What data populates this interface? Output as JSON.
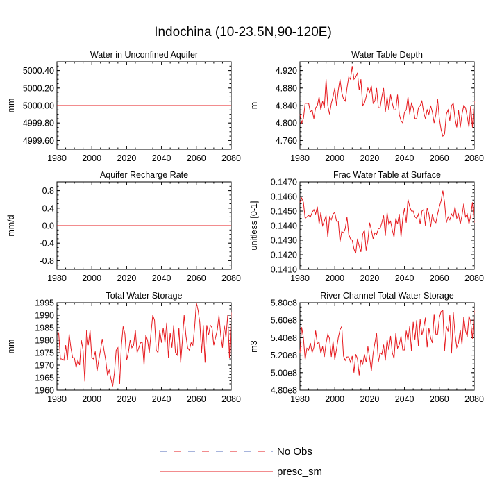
{
  "figure": {
    "title": "Indochina (10-23.5N,90-120E)"
  },
  "legend": {
    "items": [
      {
        "label": "No Obs",
        "color": "#4f6ab8",
        "style": "dashed"
      },
      {
        "label": "presc_sm",
        "color": "#e6191e",
        "style": "solid"
      }
    ]
  },
  "chart_data": [
    {
      "type": "line",
      "title": "Water in Unconfined Aquifer",
      "xlabel": "",
      "ylabel": "mm",
      "xlim": [
        1980,
        2080
      ],
      "ylim": [
        4999.5,
        5000.5
      ],
      "xticks": [
        1980,
        2000,
        2020,
        2040,
        2060,
        2080
      ],
      "xtick_labels": [
        "1980",
        "2000",
        "2020",
        "2040",
        "2060",
        "2080"
      ],
      "yticks": [
        4999.6,
        4999.8,
        5000.0,
        5000.2,
        5000.4
      ],
      "ytick_labels": [
        "4999.60",
        "4999.80",
        "5000.00",
        "5000.20",
        "5000.40"
      ],
      "x": [
        1980,
        2080
      ],
      "series": [
        {
          "name": "presc_sm",
          "values": [
            5000.0,
            5000.0
          ]
        }
      ]
    },
    {
      "type": "line",
      "title": "Water Table Depth",
      "xlabel": "",
      "ylabel": "m",
      "xlim": [
        1980,
        2080
      ],
      "ylim": [
        4.74,
        4.94
      ],
      "xticks": [
        1980,
        2000,
        2020,
        2040,
        2060,
        2080
      ],
      "xtick_labels": [
        "1980",
        "2000",
        "2020",
        "2040",
        "2060",
        "2080"
      ],
      "yticks": [
        4.76,
        4.8,
        4.84,
        4.88,
        4.92
      ],
      "ytick_labels": [
        "4.760",
        "4.800",
        "4.840",
        "4.880",
        "4.920"
      ],
      "x": [
        1980,
        1981,
        1982,
        1983,
        1984,
        1985,
        1986,
        1987,
        1988,
        1989,
        1990,
        1991,
        1992,
        1993,
        1994,
        1995,
        1996,
        1997,
        1998,
        1999,
        2000,
        2001,
        2002,
        2003,
        2004,
        2005,
        2006,
        2007,
        2008,
        2009,
        2010,
        2011,
        2012,
        2013,
        2014,
        2015,
        2016,
        2017,
        2018,
        2019,
        2020,
        2021,
        2022,
        2023,
        2024,
        2025,
        2026,
        2027,
        2028,
        2029,
        2030,
        2031,
        2032,
        2033,
        2034,
        2035,
        2036,
        2037,
        2038,
        2039,
        2040,
        2041,
        2042,
        2043,
        2044,
        2045,
        2046,
        2047,
        2048,
        2049,
        2050,
        2051,
        2052,
        2053,
        2054,
        2055,
        2056,
        2057,
        2058,
        2059,
        2060,
        2061,
        2062,
        2063,
        2064,
        2065,
        2066,
        2067,
        2068,
        2069,
        2070,
        2071,
        2072,
        2073,
        2074,
        2075,
        2076,
        2077,
        2078,
        2079,
        2080
      ],
      "series": [
        {
          "name": "presc_sm",
          "values": [
            4.82,
            4.8,
            4.81,
            4.845,
            4.845,
            4.845,
            4.825,
            4.83,
            4.81,
            4.835,
            4.84,
            4.86,
            4.83,
            4.85,
            4.835,
            4.9,
            4.84,
            4.82,
            4.845,
            4.86,
            4.88,
            4.84,
            4.875,
            4.9,
            4.87,
            4.855,
            4.85,
            4.88,
            4.905,
            4.9,
            4.93,
            4.9,
            4.905,
            4.915,
            4.875,
            4.9,
            4.84,
            4.845,
            4.86,
            4.88,
            4.87,
            4.885,
            4.845,
            4.85,
            4.88,
            4.835,
            4.835,
            4.86,
            4.88,
            4.825,
            4.86,
            4.83,
            4.865,
            4.845,
            4.83,
            4.83,
            4.865,
            4.82,
            4.805,
            4.8,
            4.825,
            4.83,
            4.86,
            4.82,
            4.845,
            4.835,
            4.81,
            4.81,
            4.835,
            4.84,
            4.85,
            4.825,
            4.81,
            4.83,
            4.82,
            4.84,
            4.825,
            4.8,
            4.82,
            4.855,
            4.81,
            4.785,
            4.77,
            4.775,
            4.82,
            4.83,
            4.805,
            4.84,
            4.845,
            4.81,
            4.79,
            4.83,
            4.79,
            4.82,
            4.84,
            4.835,
            4.815,
            4.79,
            4.84,
            4.79,
            4.85
          ]
        }
      ]
    },
    {
      "type": "line",
      "title": "Aquifer Recharge Rate",
      "xlabel": "",
      "ylabel": "mm/d",
      "xlim": [
        1980,
        2080
      ],
      "ylim": [
        -1.0,
        1.0
      ],
      "xticks": [
        1980,
        2000,
        2020,
        2040,
        2060,
        2080
      ],
      "xtick_labels": [
        "1980",
        "2000",
        "2020",
        "2040",
        "2060",
        "2080"
      ],
      "yticks": [
        -0.8,
        -0.4,
        0.0,
        0.4,
        0.8
      ],
      "ytick_labels": [
        "-0.8",
        "-0.4",
        "0.0",
        "0.4",
        "0.8"
      ],
      "x": [
        1980,
        2080
      ],
      "series": [
        {
          "name": "presc_sm",
          "values": [
            0.0,
            0.0
          ]
        }
      ]
    },
    {
      "type": "line",
      "title": "Frac Water Table at Surface",
      "xlabel": "",
      "ylabel": "unitless [0-1]",
      "xlim": [
        1980,
        2080
      ],
      "ylim": [
        0.141,
        0.147
      ],
      "xticks": [
        1980,
        2000,
        2020,
        2040,
        2060,
        2080
      ],
      "xtick_labels": [
        "1980",
        "2000",
        "2020",
        "2040",
        "2060",
        "2080"
      ],
      "yticks": [
        0.141,
        0.142,
        0.143,
        0.144,
        0.145,
        0.146,
        0.147
      ],
      "ytick_labels": [
        "0.1410",
        "0.1420",
        "0.1430",
        "0.1440",
        "0.1450",
        "0.1460",
        "0.1470"
      ],
      "x": [
        1980,
        1981,
        1982,
        1983,
        1984,
        1985,
        1986,
        1987,
        1988,
        1989,
        1990,
        1991,
        1992,
        1993,
        1994,
        1995,
        1996,
        1997,
        1998,
        1999,
        2000,
        2001,
        2002,
        2003,
        2004,
        2005,
        2006,
        2007,
        2008,
        2009,
        2010,
        2011,
        2012,
        2013,
        2014,
        2015,
        2016,
        2017,
        2018,
        2019,
        2020,
        2021,
        2022,
        2023,
        2024,
        2025,
        2026,
        2027,
        2028,
        2029,
        2030,
        2031,
        2032,
        2033,
        2034,
        2035,
        2036,
        2037,
        2038,
        2039,
        2040,
        2041,
        2042,
        2043,
        2044,
        2045,
        2046,
        2047,
        2048,
        2049,
        2050,
        2051,
        2052,
        2053,
        2054,
        2055,
        2056,
        2057,
        2058,
        2059,
        2060,
        2061,
        2062,
        2063,
        2064,
        2065,
        2066,
        2067,
        2068,
        2069,
        2070,
        2071,
        2072,
        2073,
        2074,
        2075,
        2076,
        2077,
        2078,
        2079,
        2080
      ],
      "series": [
        {
          "name": "presc_sm",
          "values": [
            0.1456,
            0.1459,
            0.1456,
            0.1445,
            0.1446,
            0.1447,
            0.1446,
            0.1449,
            0.1451,
            0.1448,
            0.1453,
            0.1441,
            0.1449,
            0.144,
            0.1443,
            0.1447,
            0.1432,
            0.1446,
            0.1444,
            0.1448,
            0.1449,
            0.1443,
            0.1443,
            0.1429,
            0.1436,
            0.1435,
            0.1438,
            0.1446,
            0.1434,
            0.1431,
            0.143,
            0.1424,
            0.1421,
            0.1431,
            0.1426,
            0.1422,
            0.1434,
            0.1437,
            0.1423,
            0.143,
            0.1442,
            0.1437,
            0.1431,
            0.1435,
            0.1434,
            0.1438,
            0.1438,
            0.1442,
            0.1447,
            0.1433,
            0.1449,
            0.1441,
            0.1443,
            0.1437,
            0.1432,
            0.1445,
            0.1441,
            0.1448,
            0.1432,
            0.1445,
            0.1452,
            0.1442,
            0.1458,
            0.1453,
            0.145,
            0.145,
            0.1446,
            0.1445,
            0.1448,
            0.1441,
            0.145,
            0.1451,
            0.144,
            0.1452,
            0.1448,
            0.1439,
            0.1448,
            0.1443,
            0.1442,
            0.1448,
            0.1453,
            0.1457,
            0.1464,
            0.1456,
            0.1442,
            0.1446,
            0.1444,
            0.1448,
            0.1446,
            0.1453,
            0.1445,
            0.1448,
            0.1441,
            0.1447,
            0.1455,
            0.1446,
            0.1448,
            0.1441,
            0.1447,
            0.1456,
            0.1442
          ]
        }
      ]
    },
    {
      "type": "line",
      "title": "Total Water Storage",
      "xlabel": "",
      "ylabel": "mm",
      "xlim": [
        1980,
        2080
      ],
      "ylim": [
        1960,
        1995
      ],
      "xticks": [
        1980,
        2000,
        2020,
        2040,
        2060,
        2080
      ],
      "xtick_labels": [
        "1980",
        "2000",
        "2020",
        "2040",
        "2060",
        "2080"
      ],
      "yticks": [
        1960,
        1965,
        1970,
        1975,
        1980,
        1985,
        1990,
        1995
      ],
      "ytick_labels": [
        "1960",
        "1965",
        "1970",
        "1975",
        "1980",
        "1985",
        "1990",
        "1995"
      ],
      "x": [
        1980,
        1981,
        1982,
        1983,
        1984,
        1985,
        1986,
        1987,
        1988,
        1989,
        1990,
        1991,
        1992,
        1993,
        1994,
        1995,
        1996,
        1997,
        1998,
        1999,
        2000,
        2001,
        2002,
        2003,
        2004,
        2005,
        2006,
        2007,
        2008,
        2009,
        2010,
        2011,
        2012,
        2013,
        2014,
        2015,
        2016,
        2017,
        2018,
        2019,
        2020,
        2021,
        2022,
        2023,
        2024,
        2025,
        2026,
        2027,
        2028,
        2029,
        2030,
        2031,
        2032,
        2033,
        2034,
        2035,
        2036,
        2037,
        2038,
        2039,
        2040,
        2041,
        2042,
        2043,
        2044,
        2045,
        2046,
        2047,
        2048,
        2049,
        2050,
        2051,
        2052,
        2053,
        2054,
        2055,
        2056,
        2057,
        2058,
        2059,
        2060,
        2061,
        2062,
        2063,
        2064,
        2065,
        2066,
        2067,
        2068,
        2069,
        2070,
        2071,
        2072,
        2073,
        2074,
        2075,
        2076,
        2077,
        2078,
        2079,
        2080
      ],
      "series": [
        {
          "name": "presc_sm",
          "values": [
            1983,
            1983,
            1972.5,
            1972.5,
            1972,
            1978,
            1972,
            1982.5,
            1977,
            1973,
            1973,
            1969,
            1972,
            1970,
            1980,
            1976,
            1963.5,
            1984,
            1978,
            1984,
            1973,
            1972.5,
            1975.5,
            1967.5,
            1972,
            1976,
            1980.5,
            1976,
            1972,
            1966,
            1968,
            1964.5,
            1961.5,
            1967,
            1976,
            1977,
            1962.5,
            1978,
            1985.5,
            1982.5,
            1972,
            1975,
            1980,
            1977,
            1978,
            1984,
            1975,
            1977,
            1979,
            1979,
            1970,
            1982,
            1980,
            1975,
            1983,
            1990,
            1988,
            1976,
            1975,
            1984,
            1979,
            1985,
            1979,
            1987,
            1973,
            1983,
            1977,
            1986,
            1975,
            1974,
            1985,
            1971,
            1980,
            1990,
            1982,
            1977,
            1976,
            1979,
            1978,
            1985,
            1995,
            1992,
            1987,
            1975,
            1986,
            1971,
            1986,
            1982,
            1986,
            1985,
            1978,
            1981,
            1984,
            1990,
            1982,
            1977,
            1986,
            1981,
            1990,
            1973,
            1991
          ]
        }
      ]
    },
    {
      "type": "line",
      "title": "River Channel Total Water Storage",
      "xlabel": "",
      "ylabel": "m3",
      "xlim": [
        1980,
        2080
      ],
      "ylim": [
        480000000,
        580000000
      ],
      "xticks": [
        1980,
        2000,
        2020,
        2040,
        2060,
        2080
      ],
      "xtick_labels": [
        "1980",
        "2000",
        "2020",
        "2040",
        "2060",
        "2080"
      ],
      "yticks": [
        480000000,
        500000000,
        520000000,
        540000000,
        560000000,
        580000000
      ],
      "ytick_labels": [
        "4.80e8",
        "5.00e8",
        "5.20e8",
        "5.40e8",
        "5.60e8",
        "5.80e8"
      ],
      "x": [
        1980,
        1981,
        1982,
        1983,
        1984,
        1985,
        1986,
        1987,
        1988,
        1989,
        1990,
        1991,
        1992,
        1993,
        1994,
        1995,
        1996,
        1997,
        1998,
        1999,
        2000,
        2001,
        2002,
        2003,
        2004,
        2005,
        2006,
        2007,
        2008,
        2009,
        2010,
        2011,
        2012,
        2013,
        2014,
        2015,
        2016,
        2017,
        2018,
        2019,
        2020,
        2021,
        2022,
        2023,
        2024,
        2025,
        2026,
        2027,
        2028,
        2029,
        2030,
        2031,
        2032,
        2033,
        2034,
        2035,
        2036,
        2037,
        2038,
        2039,
        2040,
        2041,
        2042,
        2043,
        2044,
        2045,
        2046,
        2047,
        2048,
        2049,
        2050,
        2051,
        2052,
        2053,
        2054,
        2055,
        2056,
        2057,
        2058,
        2059,
        2060,
        2061,
        2062,
        2063,
        2064,
        2065,
        2066,
        2067,
        2068,
        2069,
        2070,
        2071,
        2072,
        2073,
        2074,
        2075,
        2076,
        2077,
        2078,
        2079,
        2080
      ],
      "series": [
        {
          "name": "presc_sm",
          "values": [
            522000000,
            552000000,
            540000000,
            515000000,
            528000000,
            526000000,
            534000000,
            523000000,
            529000000,
            548000000,
            533000000,
            535000000,
            522000000,
            530000000,
            518000000,
            534000000,
            544000000,
            539000000,
            518000000,
            536000000,
            515000000,
            527000000,
            540000000,
            549000000,
            553000000,
            519000000,
            514000000,
            518000000,
            518000000,
            512000000,
            519000000,
            500000000,
            521000000,
            516000000,
            497000000,
            515000000,
            509000000,
            521000000,
            512000000,
            530000000,
            517000000,
            502000000,
            522000000,
            534000000,
            545000000,
            512000000,
            523000000,
            521000000,
            532000000,
            514000000,
            538000000,
            526000000,
            542000000,
            523000000,
            516000000,
            545000000,
            528000000,
            532000000,
            542000000,
            526000000,
            526000000,
            548000000,
            537000000,
            553000000,
            525000000,
            558000000,
            538000000,
            560000000,
            530000000,
            561000000,
            543000000,
            551000000,
            563000000,
            529000000,
            551000000,
            540000000,
            534000000,
            567000000,
            544000000,
            544000000,
            563000000,
            570000000,
            571000000,
            525000000,
            553000000,
            547000000,
            566000000,
            522000000,
            569000000,
            544000000,
            529000000,
            534000000,
            549000000,
            532000000,
            564000000,
            548000000,
            541000000,
            565000000,
            558000000,
            539000000,
            571000000
          ]
        }
      ]
    }
  ]
}
